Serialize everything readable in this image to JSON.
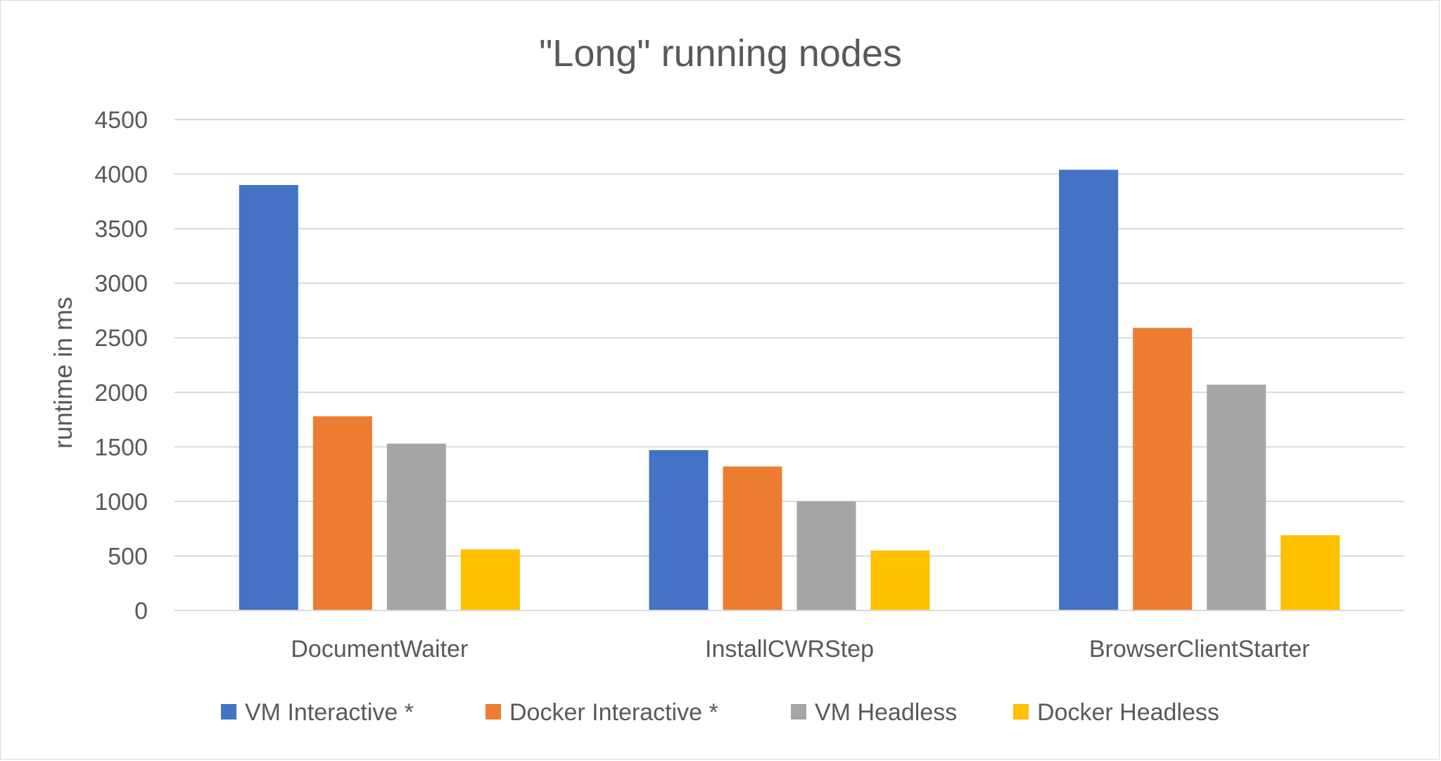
{
  "chart_data": {
    "type": "bar",
    "title": "\"Long\" running nodes",
    "xlabel": "",
    "ylabel": "runtime in ms",
    "ylim": [
      0,
      4500
    ],
    "yticks": [
      0,
      500,
      1000,
      1500,
      2000,
      2500,
      3000,
      3500,
      4000,
      4500
    ],
    "grid": true,
    "legend_position": "bottom",
    "categories": [
      "DocumentWaiter",
      "InstallCWRStep",
      "BrowserClientStarter"
    ],
    "series": [
      {
        "name": "VM Interactive *",
        "color": "#4472C4",
        "values": [
          3900,
          1470,
          4040
        ]
      },
      {
        "name": "Docker Interactive *",
        "color": "#ED7D31",
        "values": [
          1780,
          1320,
          2590
        ]
      },
      {
        "name": "VM Headless",
        "color": "#A5A5A5",
        "values": [
          1530,
          1000,
          2070
        ]
      },
      {
        "name": "Docker Headless",
        "color": "#FFC000",
        "values": [
          560,
          550,
          690
        ]
      }
    ]
  }
}
